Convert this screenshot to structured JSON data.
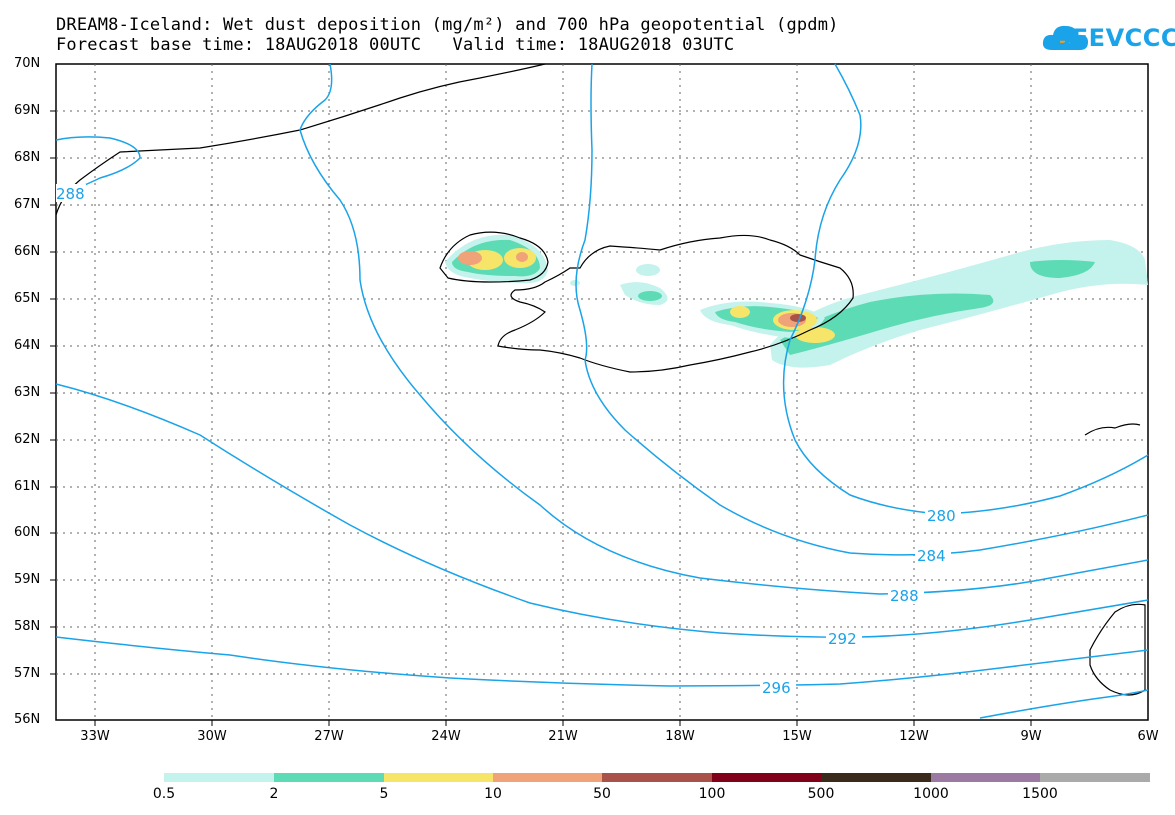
{
  "title": {
    "line1": "DREAM8-Iceland: Wet dust deposition (mg/m²) and 700 hPa geopotential (gpdm)",
    "line2": "Forecast base time: 18AUG2018 00UTC   Valid time: 18AUG2018 03UTC"
  },
  "logo": {
    "text": "SEEVCCC",
    "color": "#1aa3e8"
  },
  "map": {
    "lat_labels": [
      "70N",
      "69N",
      "68N",
      "67N",
      "66N",
      "65N",
      "64N",
      "63N",
      "62N",
      "61N",
      "60N",
      "59N",
      "58N",
      "57N",
      "56N"
    ],
    "lon_labels": [
      "33W",
      "30W",
      "27W",
      "24W",
      "21W",
      "18W",
      "15W",
      "12W",
      "9W",
      "6W"
    ],
    "contour_color": "#1aa3e8",
    "contour_labels": [
      "280",
      "284",
      "288",
      "292",
      "296",
      "288"
    ],
    "lat_range": [
      56,
      70
    ],
    "lon_range": [
      -34,
      -6
    ]
  },
  "legend": {
    "labels": [
      "0.5",
      "2",
      "5",
      "10",
      "50",
      "100",
      "500",
      "1000",
      "1500"
    ],
    "colors": [
      "#c4f2ec",
      "#5ddbb4",
      "#f7e56a",
      "#f0a278",
      "#a8524a",
      "#80001a",
      "#3a2a1c",
      "#9a7aa0",
      "#aaaaaa"
    ]
  }
}
